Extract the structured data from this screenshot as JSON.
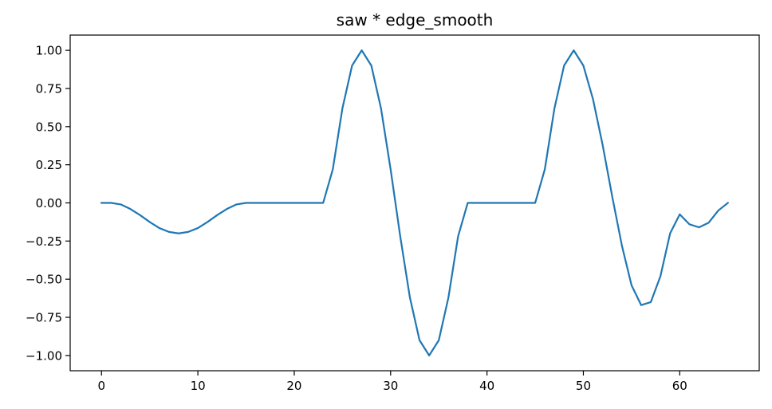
{
  "chart_data": {
    "type": "line",
    "title": "saw * edge_smooth",
    "xlabel": "",
    "ylabel": "",
    "xlim": [
      -3.25,
      68.25
    ],
    "ylim": [
      -1.1,
      1.1
    ],
    "grid": false,
    "line_color": "#1f77b4",
    "xticks": [
      0,
      10,
      20,
      30,
      40,
      50,
      60
    ],
    "xtick_labels": [
      "0",
      "10",
      "20",
      "30",
      "40",
      "50",
      "60"
    ],
    "yticks": [
      1.0,
      0.75,
      0.5,
      0.25,
      0.0,
      -0.25,
      -0.5,
      -0.75,
      -1.0
    ],
    "ytick_labels": [
      "1.00",
      "0.75",
      "0.50",
      "0.25",
      "0.00",
      "−0.25",
      "−0.50",
      "−0.75",
      "−1.00"
    ],
    "series": [
      {
        "x": [
          0,
          1,
          2,
          3,
          4,
          5,
          6,
          7,
          8,
          9,
          10,
          11,
          12,
          13,
          14,
          15,
          16,
          17,
          18,
          19,
          20,
          21,
          22,
          23,
          24,
          25,
          26,
          27,
          28,
          29,
          30,
          31,
          32,
          33,
          34,
          35,
          36,
          37,
          38,
          39,
          40,
          41,
          42,
          43,
          44,
          45,
          46,
          47,
          48,
          49,
          50,
          51,
          52,
          53,
          54,
          55,
          56,
          57,
          58,
          59,
          60,
          61,
          62,
          63,
          64,
          65
        ],
        "y": [
          0.0,
          0.0,
          -0.01,
          -0.04,
          -0.08,
          -0.125,
          -0.165,
          -0.19,
          -0.2,
          -0.19,
          -0.165,
          -0.125,
          -0.08,
          -0.04,
          -0.01,
          0.0,
          0.0,
          0.0,
          0.0,
          0.0,
          0.0,
          0.0,
          0.0,
          0.0,
          0.22,
          0.62,
          0.9,
          1.0,
          0.9,
          0.62,
          0.22,
          -0.22,
          -0.62,
          -0.9,
          -1.0,
          -0.9,
          -0.62,
          -0.22,
          0.0,
          0.0,
          0.0,
          0.0,
          0.0,
          0.0,
          0.0,
          0.0,
          0.22,
          0.62,
          0.9,
          1.0,
          0.9,
          0.68,
          0.38,
          0.04,
          -0.28,
          -0.54,
          -0.67,
          -0.65,
          -0.48,
          -0.2,
          -0.075,
          -0.14,
          -0.16,
          -0.13,
          -0.05,
          0.0
        ]
      }
    ]
  }
}
